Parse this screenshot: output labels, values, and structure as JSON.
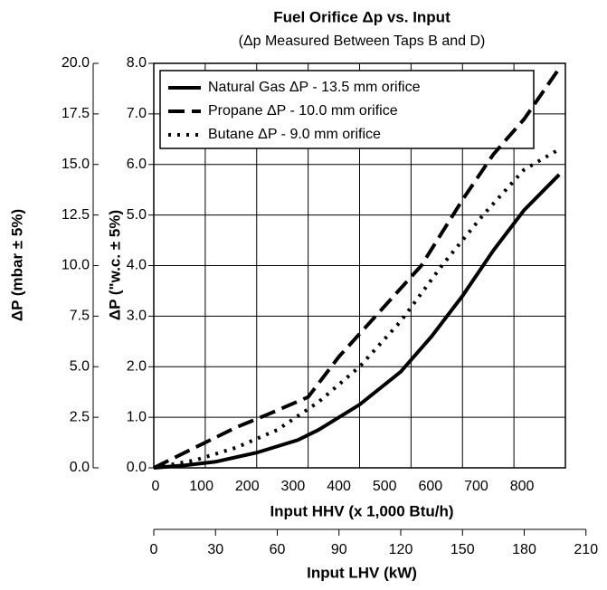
{
  "chart_data": {
    "type": "line",
    "title": "Fuel Orifice Δp vs. Input",
    "subtitle": "(Δp Measured Between Taps B and D)",
    "xlabel": "Input HHV (x 1,000 Btu/h)",
    "x3label": "Input LHV (kW)",
    "ylabel": "ΔP (\"w.c. ± 5%)",
    "y2label": "ΔP (mbar ± 5%)",
    "xlim": [
      0,
      200
    ],
    "xgrid": [
      0,
      25,
      50,
      75,
      100,
      125,
      150,
      175,
      200
    ],
    "x2lim": [
      0,
      944
    ],
    "x2ticks": [
      0,
      100,
      200,
      300,
      400,
      500,
      600,
      700,
      800
    ],
    "x3lim": [
      0,
      210
    ],
    "x3ticks": [
      0,
      30,
      60,
      90,
      120,
      150,
      180,
      210
    ],
    "ylim": [
      0,
      8
    ],
    "yticks": [
      {
        "value": 0,
        "label": "0.0"
      },
      {
        "value": 1,
        "label": "1.0"
      },
      {
        "value": 2,
        "label": "2.0"
      },
      {
        "value": 3,
        "label": "3.0"
      },
      {
        "value": 4,
        "label": "4.0"
      },
      {
        "value": 5,
        "label": "5.0"
      },
      {
        "value": 6,
        "label": "6.0"
      },
      {
        "value": 7,
        "label": "7.0"
      },
      {
        "value": 8,
        "label": "8.0"
      }
    ],
    "y2lim": [
      0,
      20
    ],
    "y2ticks": [
      {
        "value": 0,
        "label": "0.0"
      },
      {
        "value": 2.5,
        "label": "2.5"
      },
      {
        "value": 5,
        "label": "5.0"
      },
      {
        "value": 7.5,
        "label": "7.5"
      },
      {
        "value": 10,
        "label": "10.0"
      },
      {
        "value": 12.5,
        "label": "12.5"
      },
      {
        "value": 15,
        "label": "15.0"
      },
      {
        "value": 17.5,
        "label": "17.5"
      },
      {
        "value": 20,
        "label": "20.0"
      }
    ],
    "grid": true,
    "legend": "upper left",
    "series": [
      {
        "name": "Natural Gas ΔP - 13.5 mm orifice",
        "color": "#000000",
        "dash": "solid",
        "x": [
          0,
          15,
          30,
          50,
          70,
          80,
          100,
          120,
          135,
          150,
          165,
          180,
          197
        ],
        "values": [
          0,
          0.05,
          0.12,
          0.3,
          0.55,
          0.75,
          1.25,
          1.9,
          2.6,
          3.4,
          4.3,
          5.1,
          5.8
        ]
      },
      {
        "name": "Propane ΔP - 10.0 mm orifice",
        "color": "#000000",
        "dash": "dashed",
        "x": [
          0,
          20,
          40,
          55,
          75,
          90,
          110,
          130,
          150,
          165,
          180,
          197
        ],
        "values": [
          0,
          0.4,
          0.8,
          1.05,
          1.4,
          2.2,
          3.1,
          4.0,
          5.3,
          6.2,
          6.9,
          7.9
        ]
      },
      {
        "name": "Butane ΔP - 9.0 mm orifice",
        "color": "#000000",
        "dash": "dotted",
        "x": [
          0,
          20,
          40,
          60,
          80,
          100,
          120,
          140,
          160,
          180,
          197
        ],
        "values": [
          0,
          0.15,
          0.4,
          0.75,
          1.3,
          2.0,
          2.9,
          4.0,
          5.0,
          5.9,
          6.3
        ]
      }
    ]
  }
}
